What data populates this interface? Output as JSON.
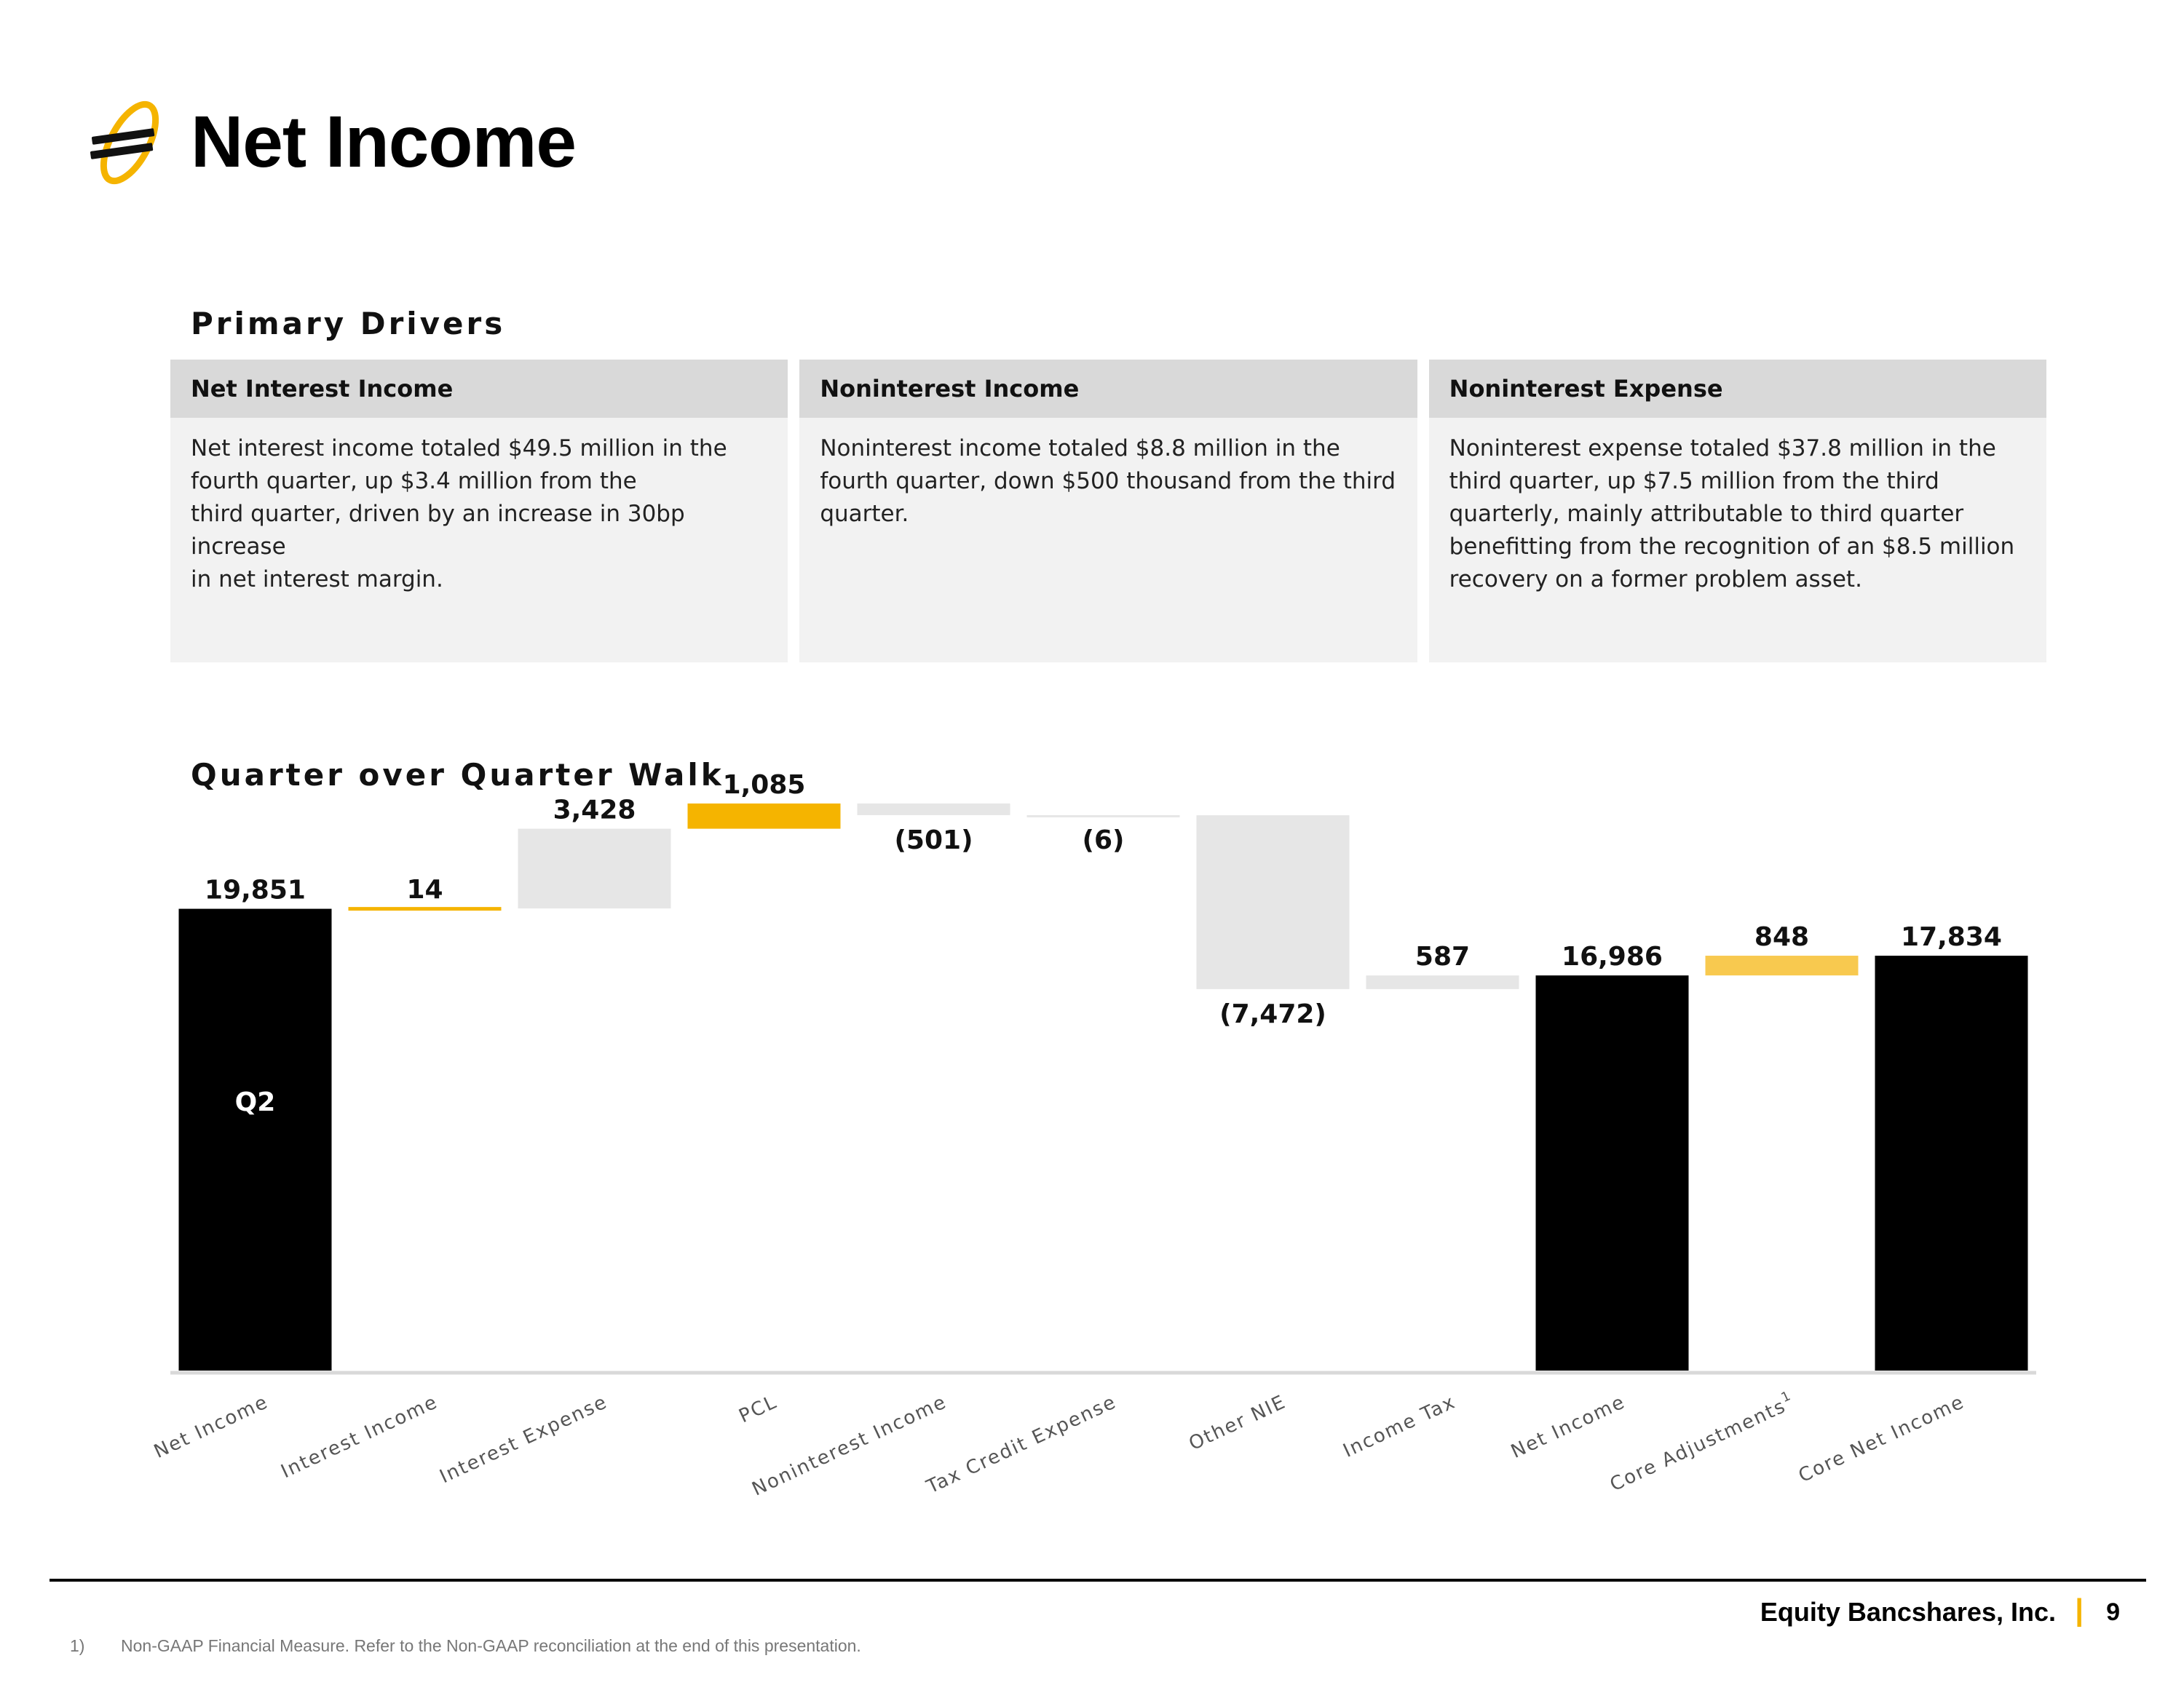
{
  "header": {
    "title": "Net Income"
  },
  "drivers": {
    "title": "Primary Drivers",
    "cards": [
      {
        "heading": "Net Interest Income",
        "lines": [
          "Net interest income totaled $49.5 million in the",
          "fourth quarter, up $3.4 million from the",
          "third quarter, driven by an increase in 30bp increase",
          "in net interest margin."
        ]
      },
      {
        "heading": "Noninterest Income",
        "lines": [
          "Noninterest income totaled $8.8 million in the",
          "fourth quarter, down $500 thousand from the third",
          "quarter."
        ]
      },
      {
        "heading": "Noninterest Expense",
        "lines": [
          "Noninterest expense totaled $37.8 million in the",
          "third quarter, up $7.5 million from the third",
          "quarterly, mainly attributable to third quarter",
          "benefitting from the recognition of an $8.5 million",
          "recovery on a former problem asset."
        ]
      }
    ]
  },
  "walk": {
    "title": "Quarter over Quarter Walk"
  },
  "chart_data": {
    "type": "bar",
    "subtype": "waterfall",
    "categories": [
      "Net Income",
      "Interest Income",
      "Interest Expense",
      "PCL",
      "Noninterest Income",
      "Tax Credit Expense",
      "Other NIE",
      "Income Tax",
      "Net Income",
      "Core Adjustments",
      "Core Net Income"
    ],
    "category_superscripts": [
      "",
      "",
      "",
      "",
      "",
      "",
      "",
      "",
      "",
      "1",
      ""
    ],
    "kinds": [
      "total",
      "delta",
      "delta",
      "delta",
      "delta",
      "delta",
      "delta",
      "delta",
      "total",
      "delta",
      "total"
    ],
    "values": [
      19851,
      14,
      3428,
      1085,
      -501,
      -6,
      -7472,
      587,
      16986,
      848,
      17834
    ],
    "data_labels": [
      "19,851",
      "14",
      "3,428",
      "1,085",
      "(501)",
      "(6)",
      "(7,472)",
      "587",
      "16,986",
      "848",
      "17,834"
    ],
    "bar_inner_labels": [
      "Q2",
      "",
      "",
      "",
      "",
      "",
      "",
      "",
      "",
      "",
      ""
    ],
    "bar_colors": [
      "#000000",
      "#f5b400",
      "#e6e6e6",
      "#f5b400",
      "#e6e6e6",
      "#e6e6e6",
      "#e6e6e6",
      "#e6e6e6",
      "#000000",
      "#f8c94f",
      "#000000"
    ],
    "bar_outline": [
      false,
      true,
      false,
      false,
      false,
      false,
      false,
      false,
      false,
      false,
      false
    ],
    "ylim": [
      0,
      24500
    ],
    "axis_color": "#d9d9d9",
    "grid": false,
    "legend": "none"
  },
  "footer": {
    "company": "Equity Bancshares, Inc.",
    "separator": "|",
    "page": "9",
    "footnote_number": "1)",
    "footnote": "Non-GAAP Financial Measure. Refer to the Non-GAAP reconciliation at the end of this presentation."
  }
}
